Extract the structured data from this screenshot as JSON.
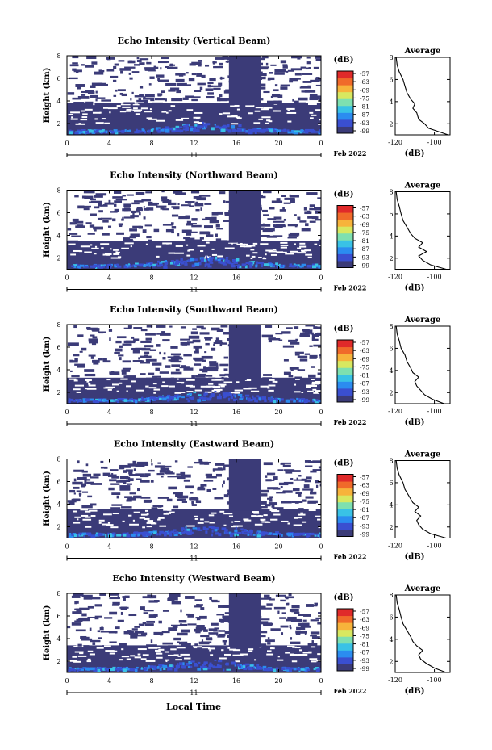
{
  "figure": {
    "xlabel": "Local Time",
    "date_label": "Feb 2022",
    "day_label": "11",
    "height_label": "Height (km)",
    "avg_title": "Average",
    "cb_title": "(dB)",
    "avg_xlabel": "(dB)"
  },
  "colors": {
    "background_fill": "#3b3b78",
    "low_echo": "#3a4fd0",
    "mid_echo": "#2b8cf0",
    "high_echo": "#39c2e6",
    "colorbar": [
      "#3b3b78",
      "#3a4fd0",
      "#2b8cf0",
      "#39c2e6",
      "#7ee0b0",
      "#d8e860",
      "#f7b33b",
      "#f06a2a",
      "#e02a2a"
    ]
  },
  "chart_data": [
    {
      "type": "heatmap",
      "title": "Echo Intensity (Vertical Beam)",
      "xlabel": "",
      "ylabel": "Height (km)",
      "x_ticks": [
        "0",
        "4",
        "8",
        "12",
        "16",
        "20",
        "0"
      ],
      "y_ticks": [
        "2",
        "4",
        "6",
        "8"
      ],
      "xlim": [
        0,
        24
      ],
      "ylim": [
        1,
        8
      ],
      "colorbar_ticks": [
        "-57",
        "-63",
        "-69",
        "-75",
        "-81",
        "-87",
        "-93",
        "-99"
      ],
      "echo_layer_top_km": 3.8,
      "data_gap_hours": [
        15.3,
        18.3
      ],
      "average_profile": {
        "xlim": [
          -120,
          -92
        ],
        "x_ticks": [
          "-120",
          "-100"
        ],
        "ylim": [
          1,
          8
        ],
        "y_ticks": [
          "2",
          "4",
          "6",
          "8"
        ],
        "x": [
          -93,
          -98,
          -103,
          -105,
          -108,
          -109,
          -111,
          -110,
          -112,
          -114,
          -115,
          -116,
          -118,
          -119,
          -119.5
        ],
        "y": [
          1.0,
          1.3,
          1.6,
          2.0,
          2.4,
          3.0,
          3.4,
          3.8,
          4.2,
          4.8,
          5.4,
          6.0,
          6.7,
          7.3,
          8.0
        ]
      }
    },
    {
      "type": "heatmap",
      "title": "Echo Intensity (Northward Beam)",
      "xlabel": "",
      "ylabel": "Height (km)",
      "x_ticks": [
        "0",
        "4",
        "8",
        "12",
        "16",
        "20",
        "0"
      ],
      "y_ticks": [
        "2",
        "4",
        "6",
        "8"
      ],
      "xlim": [
        0,
        24
      ],
      "ylim": [
        1,
        8
      ],
      "colorbar_ticks": [
        "-57",
        "-63",
        "-69",
        "-75",
        "-81",
        "-87",
        "-93",
        "-99"
      ],
      "echo_layer_top_km": 3.5,
      "data_gap_hours": [
        15.3,
        18.3
      ],
      "average_profile": {
        "xlim": [
          -120,
          -92
        ],
        "x_ticks": [
          "-120",
          "-100"
        ],
        "ylim": [
          1,
          8
        ],
        "y_ticks": [
          "2",
          "4",
          "6",
          "8"
        ],
        "x": [
          -94,
          -102,
          -106,
          -108,
          -104,
          -108,
          -106,
          -110,
          -112,
          -114,
          -116,
          -117,
          -118,
          -119,
          -119.5
        ],
        "y": [
          1.0,
          1.4,
          1.8,
          2.2,
          2.6,
          3.0,
          3.4,
          3.8,
          4.2,
          4.8,
          5.4,
          6.0,
          6.7,
          7.3,
          8.0
        ]
      }
    },
    {
      "type": "heatmap",
      "title": "Echo Intensity (Southward Beam)",
      "xlabel": "",
      "ylabel": "Height (km)",
      "x_ticks": [
        "0",
        "4",
        "8",
        "12",
        "16",
        "20",
        "0"
      ],
      "y_ticks": [
        "2",
        "4",
        "6",
        "8"
      ],
      "xlim": [
        0,
        24
      ],
      "ylim": [
        1,
        8
      ],
      "colorbar_ticks": [
        "-57",
        "-63",
        "-69",
        "-75",
        "-81",
        "-87",
        "-93",
        "-99"
      ],
      "echo_layer_top_km": 3.3,
      "data_gap_hours": [
        15.3,
        18.3
      ],
      "average_profile": {
        "xlim": [
          -120,
          -92
        ],
        "x_ticks": [
          "-120",
          "-100"
        ],
        "ylim": [
          1,
          8
        ],
        "y_ticks": [
          "2",
          "4",
          "6",
          "8"
        ],
        "x": [
          -95,
          -101,
          -105,
          -107,
          -109,
          -110,
          -108,
          -111,
          -112,
          -114,
          -115,
          -117,
          -118,
          -119,
          -119.5
        ],
        "y": [
          1.0,
          1.4,
          1.8,
          2.2,
          2.6,
          3.0,
          3.4,
          3.8,
          4.2,
          4.8,
          5.4,
          6.0,
          6.7,
          7.3,
          8.0
        ]
      }
    },
    {
      "type": "heatmap",
      "title": "Echo Intensity (Eastward Beam)",
      "xlabel": "",
      "ylabel": "Height (km)",
      "x_ticks": [
        "0",
        "4",
        "8",
        "12",
        "16",
        "20",
        "0"
      ],
      "y_ticks": [
        "2",
        "4",
        "6",
        "8"
      ],
      "xlim": [
        0,
        24
      ],
      "ylim": [
        1,
        8
      ],
      "colorbar_ticks": [
        "-57",
        "-63",
        "-69",
        "-75",
        "-81",
        "-87",
        "-93",
        "-99"
      ],
      "echo_layer_top_km": 3.6,
      "data_gap_hours": [
        15.3,
        18.3
      ],
      "average_profile": {
        "xlim": [
          -120,
          -92
        ],
        "x_ticks": [
          "-120",
          "-100"
        ],
        "ylim": [
          1,
          8
        ],
        "y_ticks": [
          "2",
          "4",
          "6",
          "8"
        ],
        "x": [
          -94,
          -102,
          -106,
          -108,
          -109,
          -107,
          -110,
          -108,
          -111,
          -113,
          -115,
          -116,
          -118,
          -119,
          -119.5
        ],
        "y": [
          1.0,
          1.4,
          1.8,
          2.2,
          2.6,
          3.0,
          3.4,
          3.8,
          4.2,
          4.8,
          5.4,
          6.0,
          6.7,
          7.3,
          8.0
        ]
      }
    },
    {
      "type": "heatmap",
      "title": "Echo Intensity (Westward Beam)",
      "xlabel": "Local Time",
      "ylabel": "Height (km)",
      "x_ticks": [
        "0",
        "4",
        "8",
        "12",
        "16",
        "20",
        "0"
      ],
      "y_ticks": [
        "2",
        "4",
        "6",
        "8"
      ],
      "xlim": [
        0,
        24
      ],
      "ylim": [
        1,
        8
      ],
      "colorbar_ticks": [
        "-57",
        "-63",
        "-69",
        "-75",
        "-81",
        "-87",
        "-93",
        "-99"
      ],
      "echo_layer_top_km": 3.4,
      "data_gap_hours": [
        15.3,
        18.3
      ],
      "average_profile": {
        "xlim": [
          -120,
          -92
        ],
        "x_ticks": [
          "-120",
          "-100"
        ],
        "ylim": [
          1,
          8
        ],
        "y_ticks": [
          "2",
          "4",
          "6",
          "8"
        ],
        "x": [
          -94,
          -100,
          -104,
          -107,
          -108,
          -106,
          -109,
          -111,
          -112,
          -114,
          -116,
          -117,
          -118,
          -119,
          -119.5
        ],
        "y": [
          1.0,
          1.4,
          1.8,
          2.2,
          2.6,
          3.0,
          3.4,
          3.8,
          4.2,
          4.8,
          5.4,
          6.0,
          6.7,
          7.3,
          8.0
        ]
      }
    }
  ]
}
